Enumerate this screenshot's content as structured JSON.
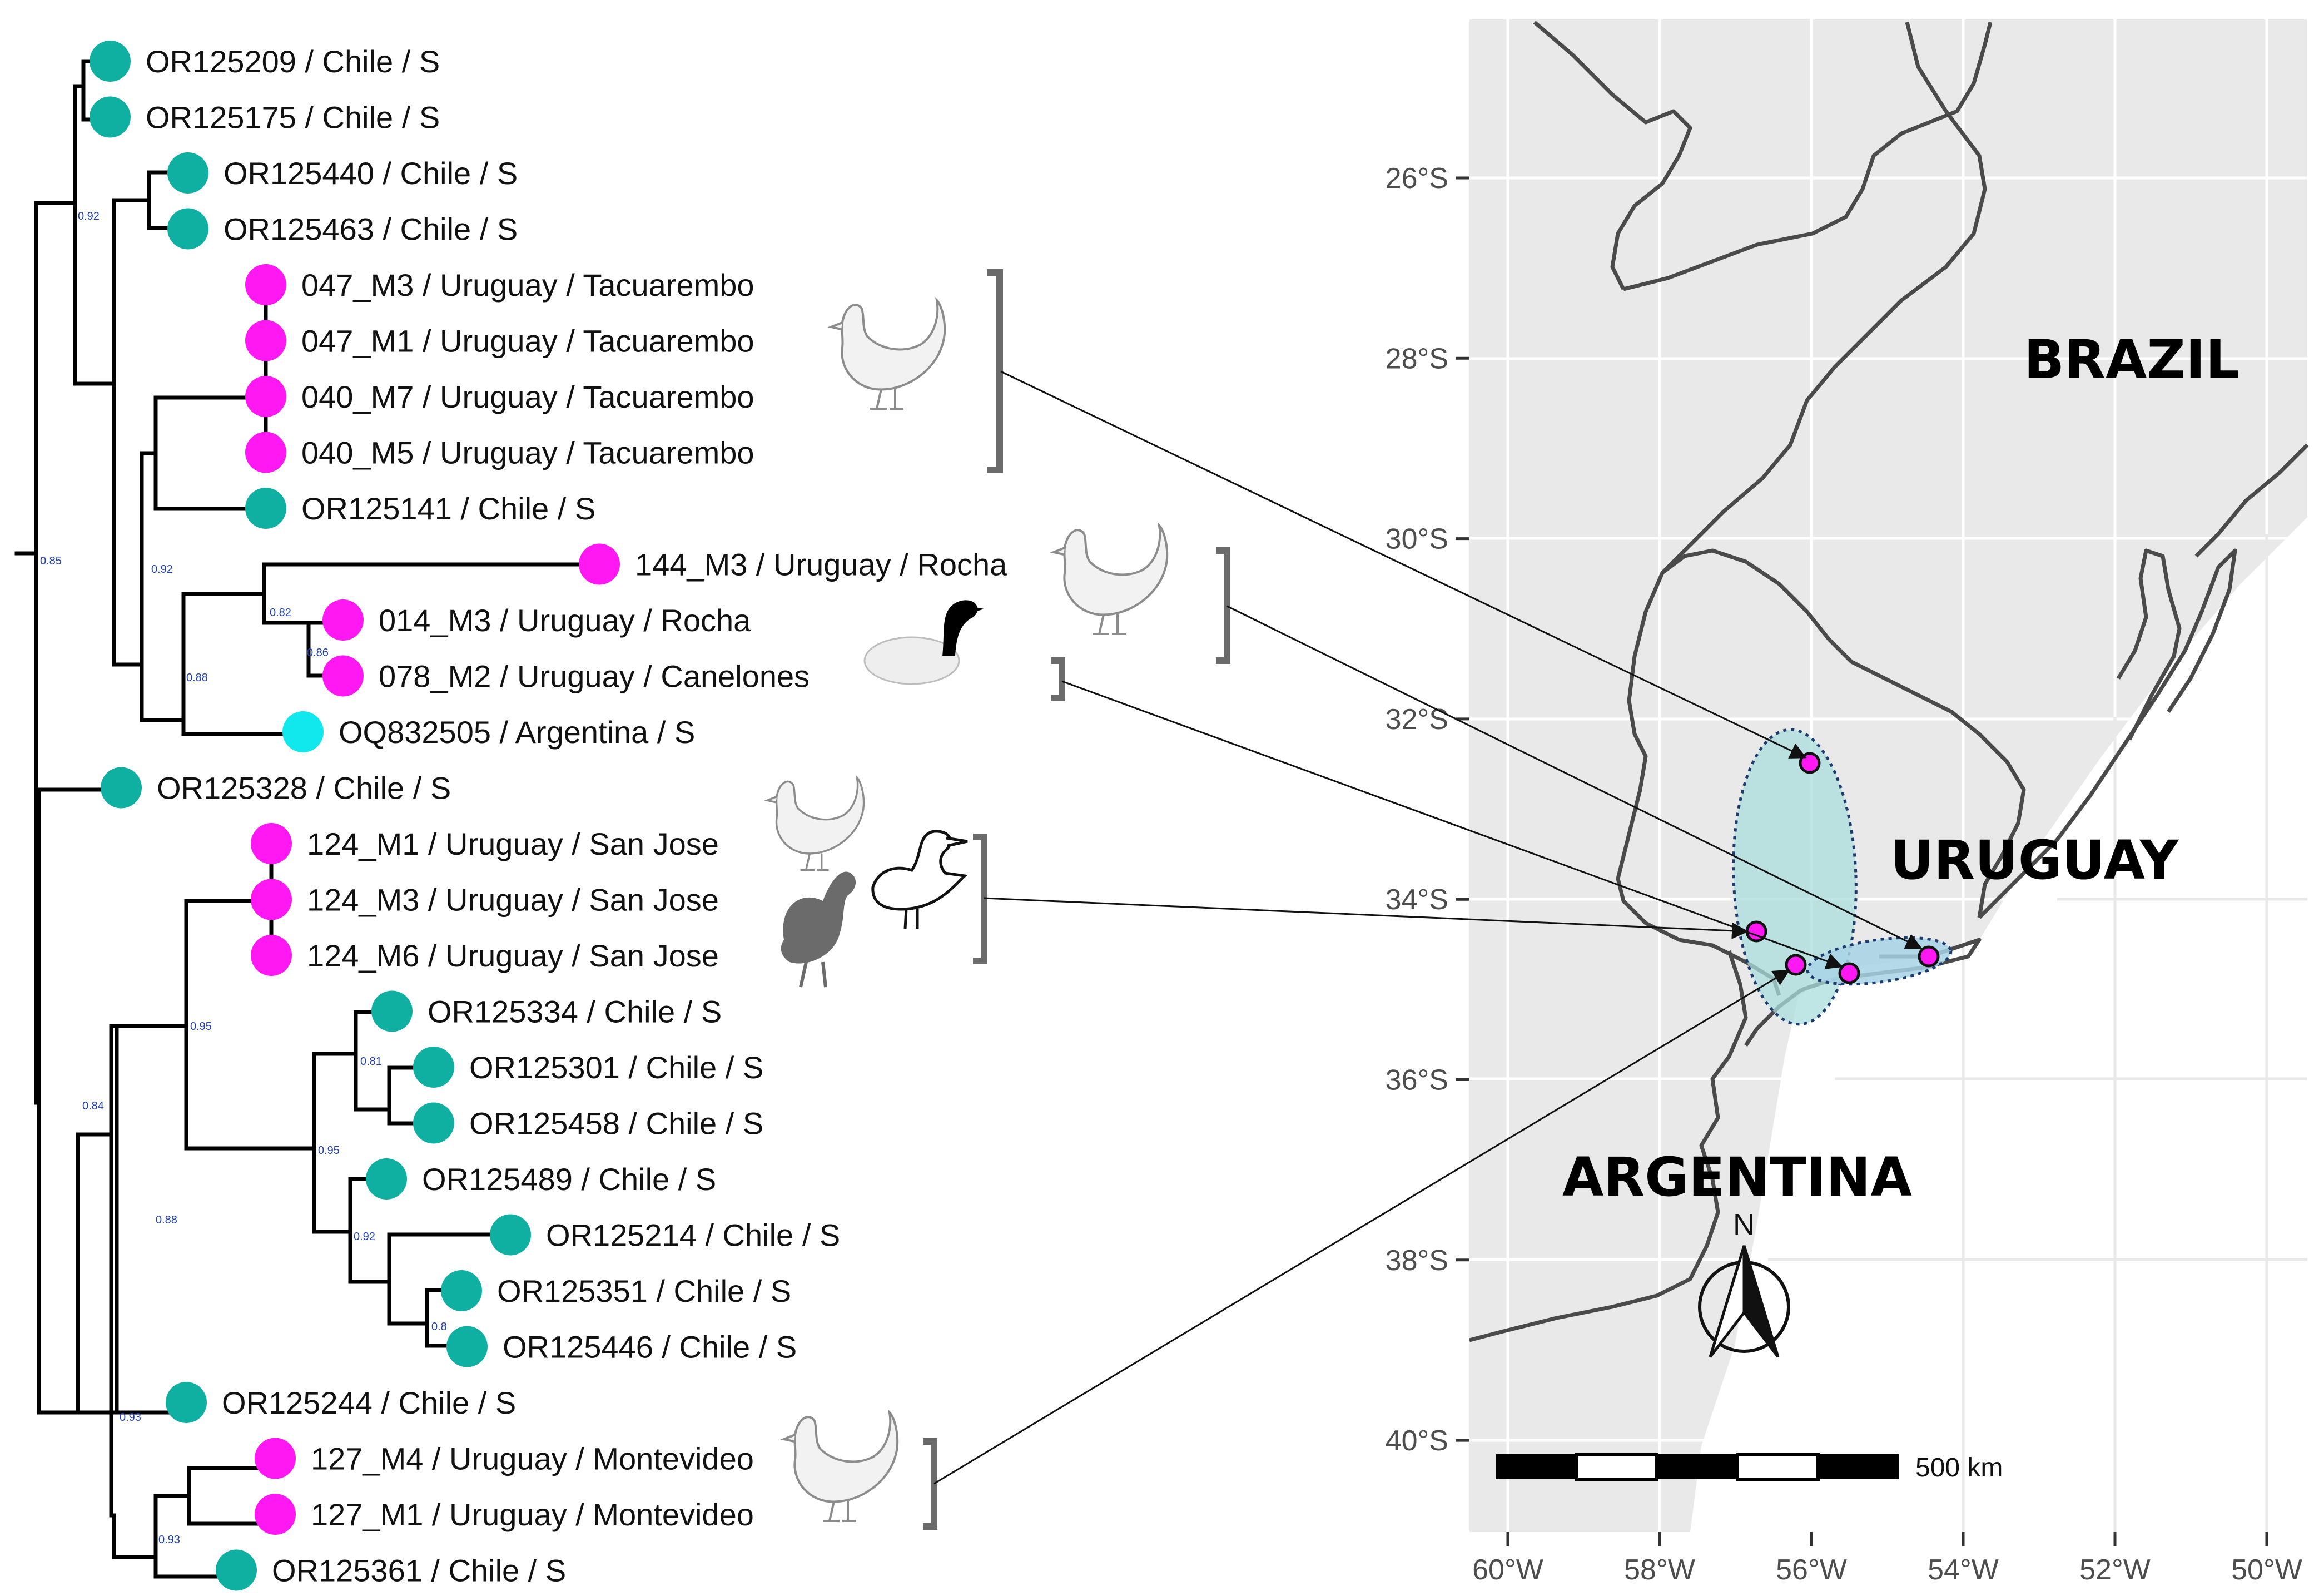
{
  "colors": {
    "chile": "#0fb0a2",
    "uruguay": "#ff18f2",
    "argentina": "#10e8ee",
    "map_bg": "#e9e9e9",
    "hull": "#a9dcdc"
  },
  "tree": {
    "tips": [
      {
        "label": "OR125209 / Chile / S",
        "country": "chile"
      },
      {
        "label": "OR125175 / Chile / S",
        "country": "chile"
      },
      {
        "label": "OR125440 / Chile / S",
        "country": "chile"
      },
      {
        "label": "OR125463 / Chile / S",
        "country": "chile"
      },
      {
        "label": "047_M3 / Uruguay / Tacuarembo",
        "country": "uruguay"
      },
      {
        "label": "047_M1 / Uruguay / Tacuarembo",
        "country": "uruguay"
      },
      {
        "label": "040_M7 / Uruguay / Tacuarembo",
        "country": "uruguay"
      },
      {
        "label": "040_M5 / Uruguay / Tacuarembo",
        "country": "uruguay"
      },
      {
        "label": "OR125141 / Chile / S",
        "country": "chile"
      },
      {
        "label": "144_M3 / Uruguay / Rocha",
        "country": "uruguay"
      },
      {
        "label": "014_M3 / Uruguay / Rocha",
        "country": "uruguay"
      },
      {
        "label": "078_M2 / Uruguay / Canelones",
        "country": "uruguay"
      },
      {
        "label": "OQ832505 / Argentina / S",
        "country": "argentina"
      },
      {
        "label": "OR125328 / Chile / S",
        "country": "chile"
      },
      {
        "label": "124_M1 / Uruguay / San Jose",
        "country": "uruguay"
      },
      {
        "label": "124_M3 / Uruguay / San Jose",
        "country": "uruguay"
      },
      {
        "label": "124_M6 / Uruguay / San Jose",
        "country": "uruguay"
      },
      {
        "label": "OR125334 / Chile / S",
        "country": "chile"
      },
      {
        "label": "OR125301 / Chile / S",
        "country": "chile"
      },
      {
        "label": "OR125458 / Chile / S",
        "country": "chile"
      },
      {
        "label": "OR125489 / Chile / S",
        "country": "chile"
      },
      {
        "label": "OR125214 / Chile / S",
        "country": "chile"
      },
      {
        "label": "OR125351 / Chile / S",
        "country": "chile"
      },
      {
        "label": "OR125446 / Chile / S",
        "country": "chile"
      },
      {
        "label": "OR125244 / Chile / S",
        "country": "chile"
      },
      {
        "label": "127_M4 / Uruguay / Montevideo",
        "country": "uruguay"
      },
      {
        "label": "127_M1 / Uruguay / Montevideo",
        "country": "uruguay"
      },
      {
        "label": "OR125361 / Chile / S",
        "country": "chile"
      }
    ],
    "supports": [
      "0.92",
      "0.85",
      "0.92",
      "0.82",
      "0.86",
      "0.88",
      "0.84",
      "0.95",
      "0.81",
      "0.95",
      "0.92",
      "0.8",
      "0.88",
      "0.93",
      "0.93"
    ]
  },
  "host_icons": [
    "chicken-icon",
    "duck-icon",
    "turkey-icon",
    "goose-icon"
  ],
  "map": {
    "countries": [
      "BRAZIL",
      "URUGUAY",
      "ARGENTINA"
    ],
    "lat_ticks": [
      "26°S",
      "28°S",
      "30°S",
      "32°S",
      "34°S",
      "36°S",
      "38°S",
      "40°S"
    ],
    "lon_ticks": [
      "60°W",
      "58°W",
      "56°W",
      "54°W",
      "52°W",
      "50°W"
    ],
    "scale_label": "500 km",
    "north_label": "N"
  }
}
